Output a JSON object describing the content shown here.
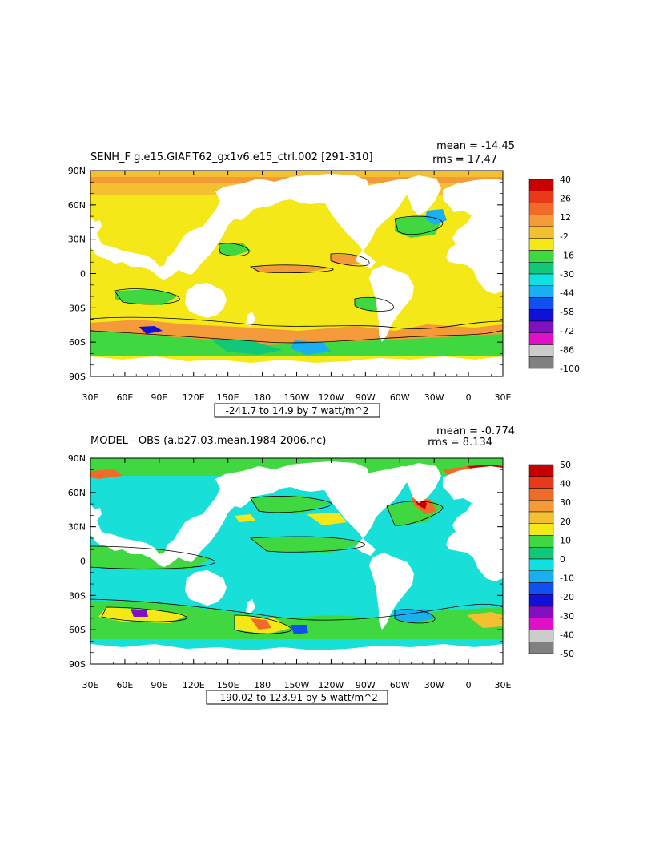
{
  "panels": [
    {
      "title": "SENH_F g.e15.GIAF.T62_gx1v6.e15_ctrl.002 [291-310]",
      "mean_text": "mean = -14.45",
      "rms_text": "rms = 17.47",
      "range_text": "-241.7 to 14.9 by 7 watt/m^2",
      "lat_labels": [
        "90N",
        "60N",
        "30N",
        "0",
        "30S",
        "60S",
        "90S"
      ],
      "lon_labels": [
        "30E",
        "60E",
        "90E",
        "120E",
        "150E",
        "180",
        "150W",
        "120W",
        "90W",
        "60W",
        "30W",
        "0",
        "30E"
      ],
      "colorbar_labels": [
        "40",
        "26",
        "12",
        "-2",
        "-16",
        "-30",
        "-44",
        "-58",
        "-72",
        "-86",
        "-100"
      ],
      "colorbar_colors": [
        "#c80000",
        "#e83a1a",
        "#f06a28",
        "#f59a38",
        "#f5c030",
        "#f5e818",
        "#40d840",
        "#10c878",
        "#10e0e0",
        "#18b0f0",
        "#1050f0",
        "#1010d8",
        "#8010c0",
        "#e010c8",
        "#cccccc",
        "#808080"
      ],
      "ocean_color": "#f5e818",
      "high_latitude_color": "#f5c030"
    },
    {
      "title": "MODEL - OBS (a.b27.03.mean.1984-2006.nc)",
      "mean_text": "mean = -0.774",
      "rms_text": "rms = 8.134",
      "range_text": "-190.02 to 123.91 by 5 watt/m^2",
      "lat_labels": [
        "90N",
        "60N",
        "30N",
        "0",
        "30S",
        "60S",
        "90S"
      ],
      "lon_labels": [
        "30E",
        "60E",
        "90E",
        "120E",
        "150E",
        "180",
        "150W",
        "120W",
        "90W",
        "60W",
        "30W",
        "0",
        "30E"
      ],
      "colorbar_labels": [
        "50",
        "40",
        "30",
        "20",
        "10",
        "0",
        "-10",
        "-20",
        "-30",
        "-40",
        "-50"
      ],
      "colorbar_colors": [
        "#c80000",
        "#e83a1a",
        "#f06a28",
        "#f59a38",
        "#f5c030",
        "#f5e818",
        "#40d840",
        "#10c878",
        "#10e0e0",
        "#18b0f0",
        "#1050f0",
        "#1010d8",
        "#8010c0",
        "#e010c8",
        "#cccccc",
        "#808080"
      ],
      "ocean_color": "#18e0d8",
      "high_latitude_color": "#40d840"
    }
  ]
}
